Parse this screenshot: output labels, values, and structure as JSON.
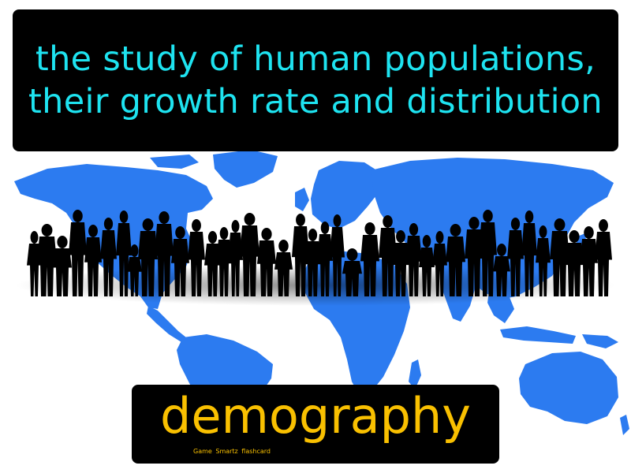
{
  "definition": "the study of human populations, their growth rate and distribution",
  "term": "demography",
  "branding": "Game Smartz flashcard",
  "colors": {
    "definition_text": "#1ee3f0",
    "term_text": "#f9c000",
    "map": "#2c7bf0",
    "silhouettes": "#000000",
    "box_background": "#000000",
    "page_background": "#ffffff"
  },
  "illustration": {
    "map_icon": "world-map",
    "people_icon": "crowd-silhouette"
  }
}
